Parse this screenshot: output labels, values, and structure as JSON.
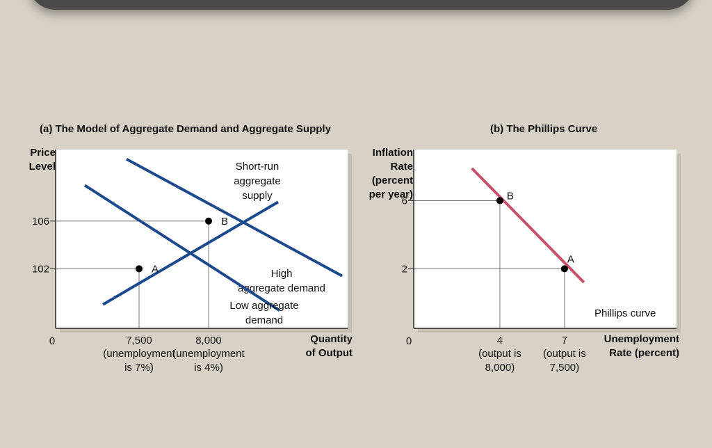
{
  "chart_data": [
    {
      "type": "line",
      "title": "(a) The Model of Aggregate Demand and Aggregate Supply",
      "ylabel": [
        "Price",
        "Level"
      ],
      "xlabel": [
        "Quantity",
        "of Output"
      ],
      "origin_label": "0",
      "xlim": [
        6900,
        9000
      ],
      "ylim": [
        97,
        112
      ],
      "yticks": [
        {
          "value": 106,
          "label": "106"
        },
        {
          "value": 102,
          "label": "102"
        }
      ],
      "xticks": [
        {
          "value": 7500,
          "label": "7,500",
          "sub": [
            "(unemployment",
            "is 7%)"
          ]
        },
        {
          "value": 8000,
          "label": "8,000",
          "sub": [
            "(unemployment",
            "is 4%)"
          ]
        }
      ],
      "series": [
        {
          "name": "Short-run aggregate supply",
          "label_lines": [
            "Short-run",
            "aggregate",
            "supply"
          ],
          "color": "#1c4a8c",
          "points": [
            [
              7240,
              99.0
            ],
            [
              8500,
              107.6
            ]
          ]
        },
        {
          "name": "High aggregate demand",
          "label_lines": [
            "High",
            "aggregate demand"
          ],
          "color": "#1c4a8c",
          "points": [
            [
              7410,
              111.2
            ],
            [
              8960,
              101.4
            ]
          ]
        },
        {
          "name": "Low aggregate demand",
          "label_lines": [
            "Low aggregate",
            "demand"
          ],
          "color": "#1c4a8c",
          "points": [
            [
              7110,
              109.0
            ],
            [
              8510,
              98.5
            ]
          ]
        }
      ],
      "points": [
        {
          "label": "A",
          "x": 7500,
          "y": 102
        },
        {
          "label": "B",
          "x": 8000,
          "y": 106
        }
      ]
    },
    {
      "type": "line",
      "title": "(b) The Phillips Curve",
      "ylabel": [
        "Inflation",
        "Rate",
        "(percent",
        "per year)"
      ],
      "xlabel": [
        "Unemployment",
        "Rate (percent)"
      ],
      "origin_label": "0",
      "xlim": [
        0,
        12.2
      ],
      "ylim": [
        -1.5,
        9
      ],
      "yticks": [
        {
          "value": 6,
          "label": "6"
        },
        {
          "value": 2,
          "label": "2"
        }
      ],
      "xticks": [
        {
          "value": 4,
          "label": "4",
          "sub": [
            "(output is",
            "8,000)"
          ]
        },
        {
          "value": 7,
          "label": "7",
          "sub": [
            "(output is",
            "7,500)"
          ]
        }
      ],
      "series": [
        {
          "name": "Phillips curve",
          "label_lines": [
            "Phillips curve"
          ],
          "color": "#c8506a",
          "points": [
            [
              2.7,
              7.9
            ],
            [
              7.9,
              1.2
            ]
          ]
        }
      ],
      "points": [
        {
          "label": "B",
          "x": 4,
          "y": 6
        },
        {
          "label": "A",
          "x": 7,
          "y": 2
        }
      ]
    }
  ]
}
